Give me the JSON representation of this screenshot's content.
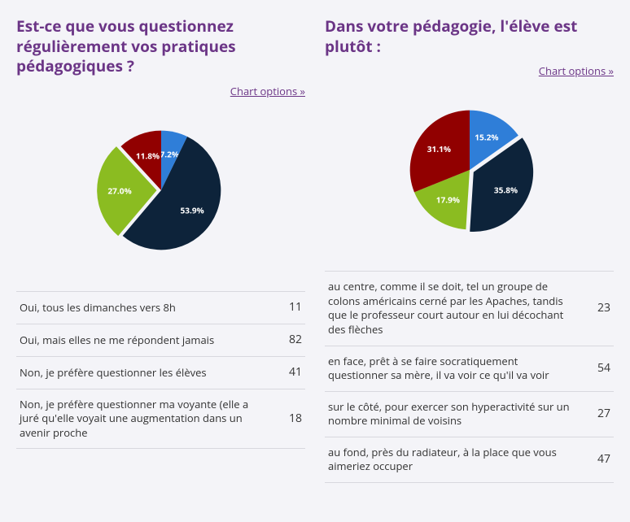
{
  "chart_options_label": "Chart options »",
  "charts": [
    {
      "title": "Est-ce que vous questionnez régulièrement vos pratiques pédagogiques ?",
      "type": "pie",
      "slices": [
        {
          "label": "Oui, tous les dimanches vers 8h",
          "count": 11,
          "pct": 7.2,
          "pct_label": "7.2%",
          "color": "#2f7ed8",
          "explode": 0
        },
        {
          "label": "Oui, mais elles ne me répondent jamais",
          "count": 82,
          "pct": 53.9,
          "pct_label": "53.9%",
          "color": "#0d233a",
          "explode": 0
        },
        {
          "label": "Non, je préfère questionner les élèves",
          "count": 41,
          "pct": 27.0,
          "pct_label": "27.0%",
          "color": "#8bbc21",
          "explode": 6
        },
        {
          "label": "Non, je préfère questionner ma voyante (elle a juré qu'elle voyait une augmentation dans un avenir proche",
          "count": 18,
          "pct": 11.8,
          "pct_label": "11.8%",
          "color": "#910000",
          "explode": 0
        }
      ],
      "radius": 80,
      "label_fontsize": 11,
      "label_color": "#ffffff",
      "background_color": "#f4f4f8",
      "start_angle_deg": -90
    },
    {
      "title": "Dans votre pédagogie, l'élève est plutôt :",
      "type": "pie",
      "slices": [
        {
          "label": "au centre, comme il se doit, tel un groupe de colons américains cerné par les Apaches, tandis que le professeur court autour en lui décochant des flèches",
          "count": 23,
          "pct": 15.2,
          "pct_label": "15.2%",
          "color": "#2f7ed8",
          "explode": 0
        },
        {
          "label": "en face, prêt à se faire socratiquement questionner sa mère, il va voir ce qu'il va voir",
          "count": 54,
          "pct": 35.8,
          "pct_label": "35.8%",
          "color": "#0d233a",
          "explode": 6
        },
        {
          "label": "sur le côté, pour exercer son hyperactivité sur un nombre minimal de voisins",
          "count": 27,
          "pct": 17.9,
          "pct_label": "17.9%",
          "color": "#8bbc21",
          "explode": 0
        },
        {
          "label": "au fond, près du radiateur, à la place que vous aimeriez occuper",
          "count": 47,
          "pct": 31.1,
          "pct_label": "31.1%",
          "color": "#910000",
          "explode": 0
        }
      ],
      "radius": 80,
      "label_fontsize": 11,
      "label_color": "#ffffff",
      "background_color": "#f4f4f8",
      "start_angle_deg": -90
    }
  ]
}
